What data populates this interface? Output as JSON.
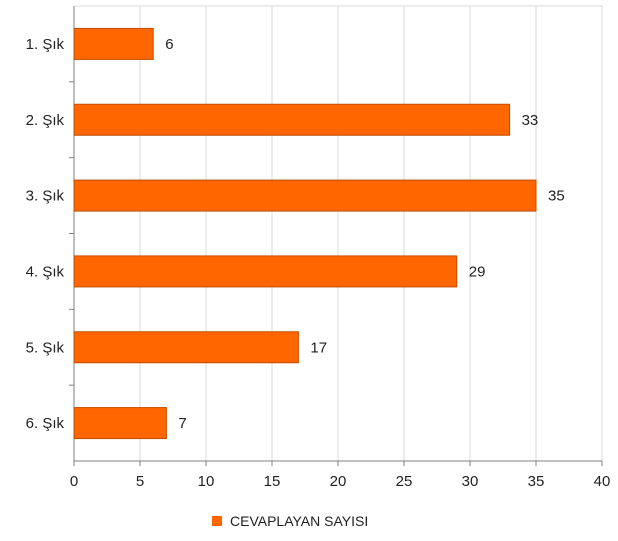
{
  "chart_data": {
    "type": "bar",
    "orientation": "horizontal",
    "categories": [
      "1. Şık",
      "2. Şık",
      "3. Şık",
      "4. Şık",
      "5. Şık",
      "6. Şık"
    ],
    "series": [
      {
        "name": "CEVAPLAYAN SAYISI",
        "values": [
          6,
          33,
          35,
          29,
          17,
          7
        ],
        "color": "#ff6600"
      }
    ],
    "xlim": [
      0,
      40
    ],
    "x_ticks": [
      0,
      5,
      10,
      15,
      20,
      25,
      30,
      35,
      40
    ],
    "grid": true,
    "data_labels": true,
    "legend": {
      "position": "bottom",
      "entries": [
        "CEVAPLAYAN SAYISI"
      ]
    },
    "title": "",
    "xlabel": "",
    "ylabel": ""
  }
}
